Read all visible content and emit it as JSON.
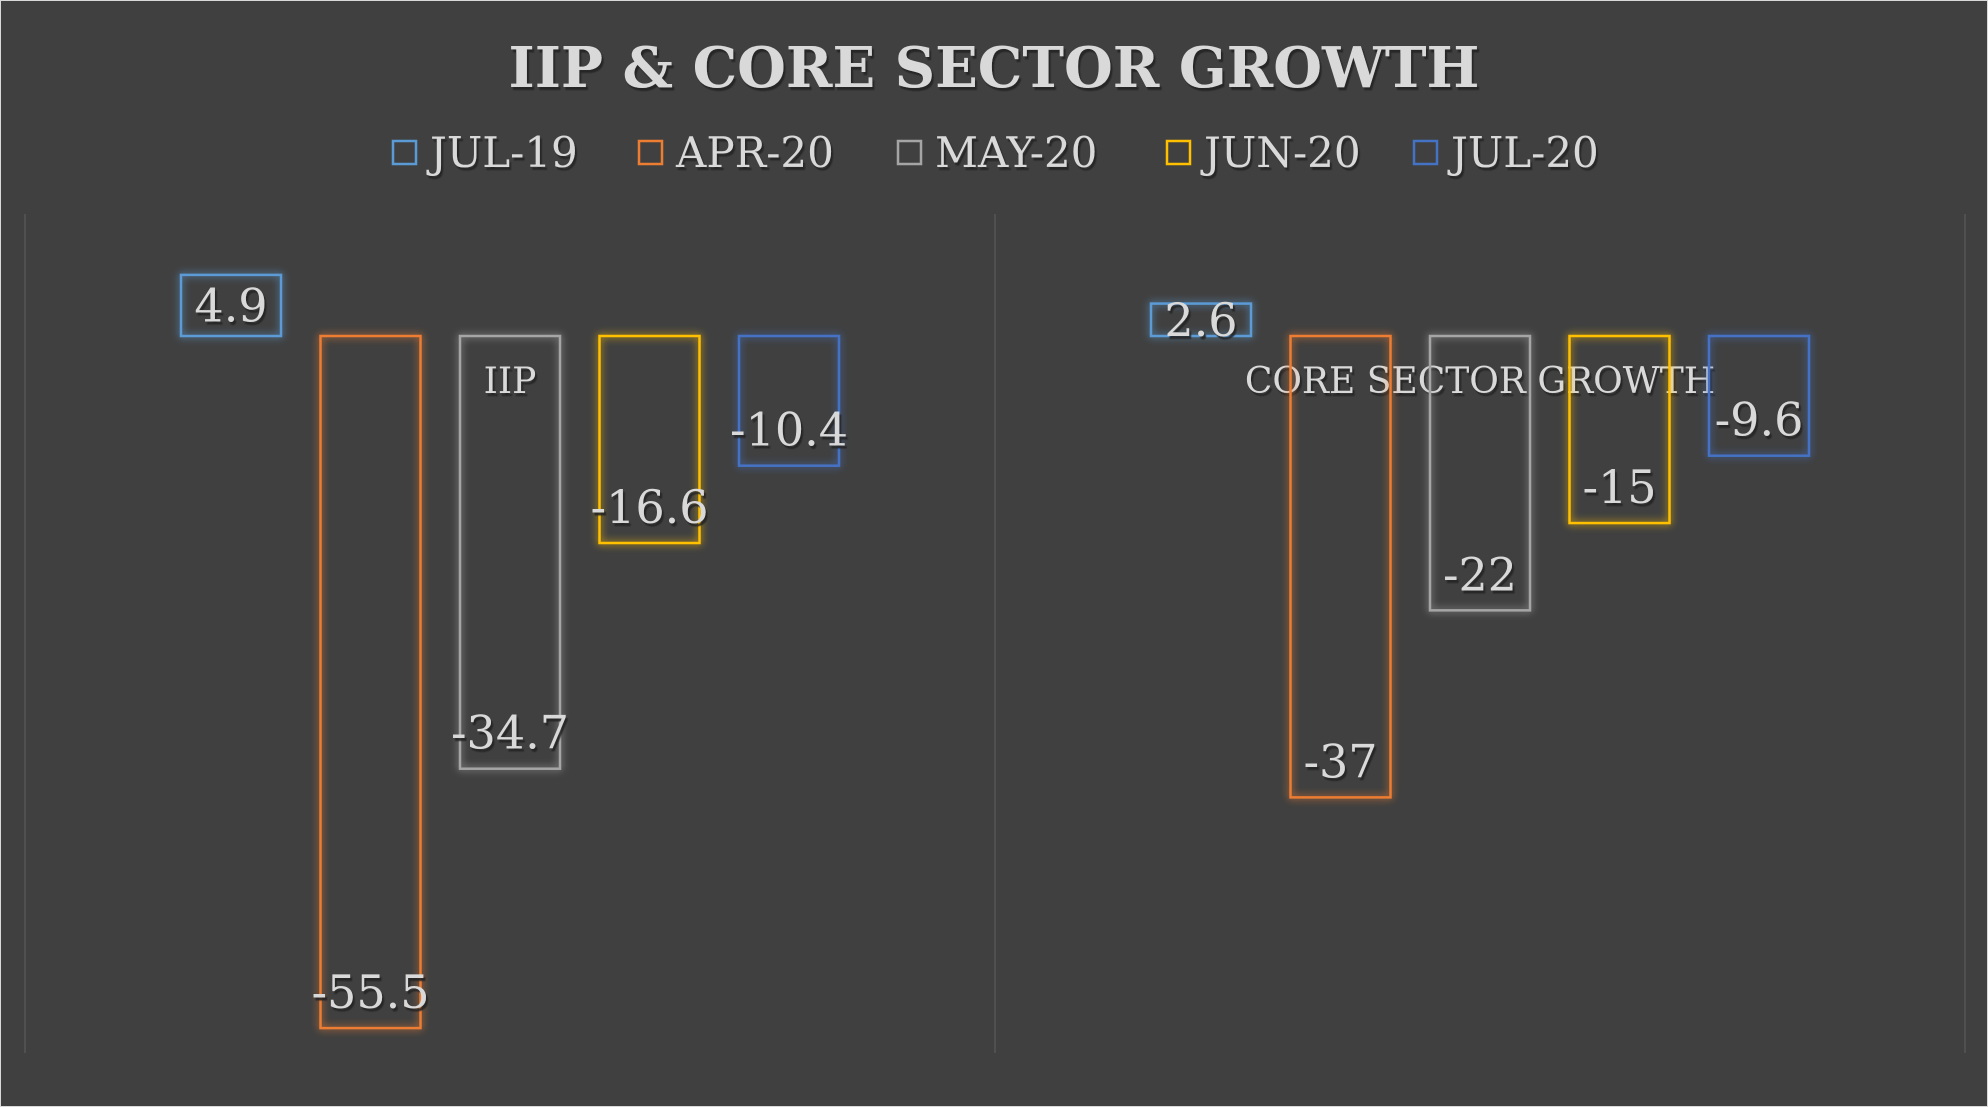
{
  "chart_data": {
    "type": "bar",
    "title": "IIP & CORE SECTOR GROWTH",
    "categories": [
      "IIP",
      "CORE SECTOR GROWTH"
    ],
    "series": [
      {
        "name": "JUL-19",
        "color": "#5b9bd5",
        "values": [
          4.9,
          2.6
        ]
      },
      {
        "name": "APR-20",
        "color": "#ed7d31",
        "values": [
          -55.5,
          -37
        ]
      },
      {
        "name": "MAY-20",
        "color": "#a5a5a5",
        "values": [
          -34.7,
          -22
        ]
      },
      {
        "name": "JUN-20",
        "color": "#ffc000",
        "values": [
          -16.6,
          -15
        ]
      },
      {
        "name": "JUL-20",
        "color": "#4472c4",
        "values": [
          -10.4,
          -9.6
        ]
      }
    ],
    "legend": "top",
    "grid": false,
    "bar_style": "outline-glow",
    "background": "#404040"
  }
}
